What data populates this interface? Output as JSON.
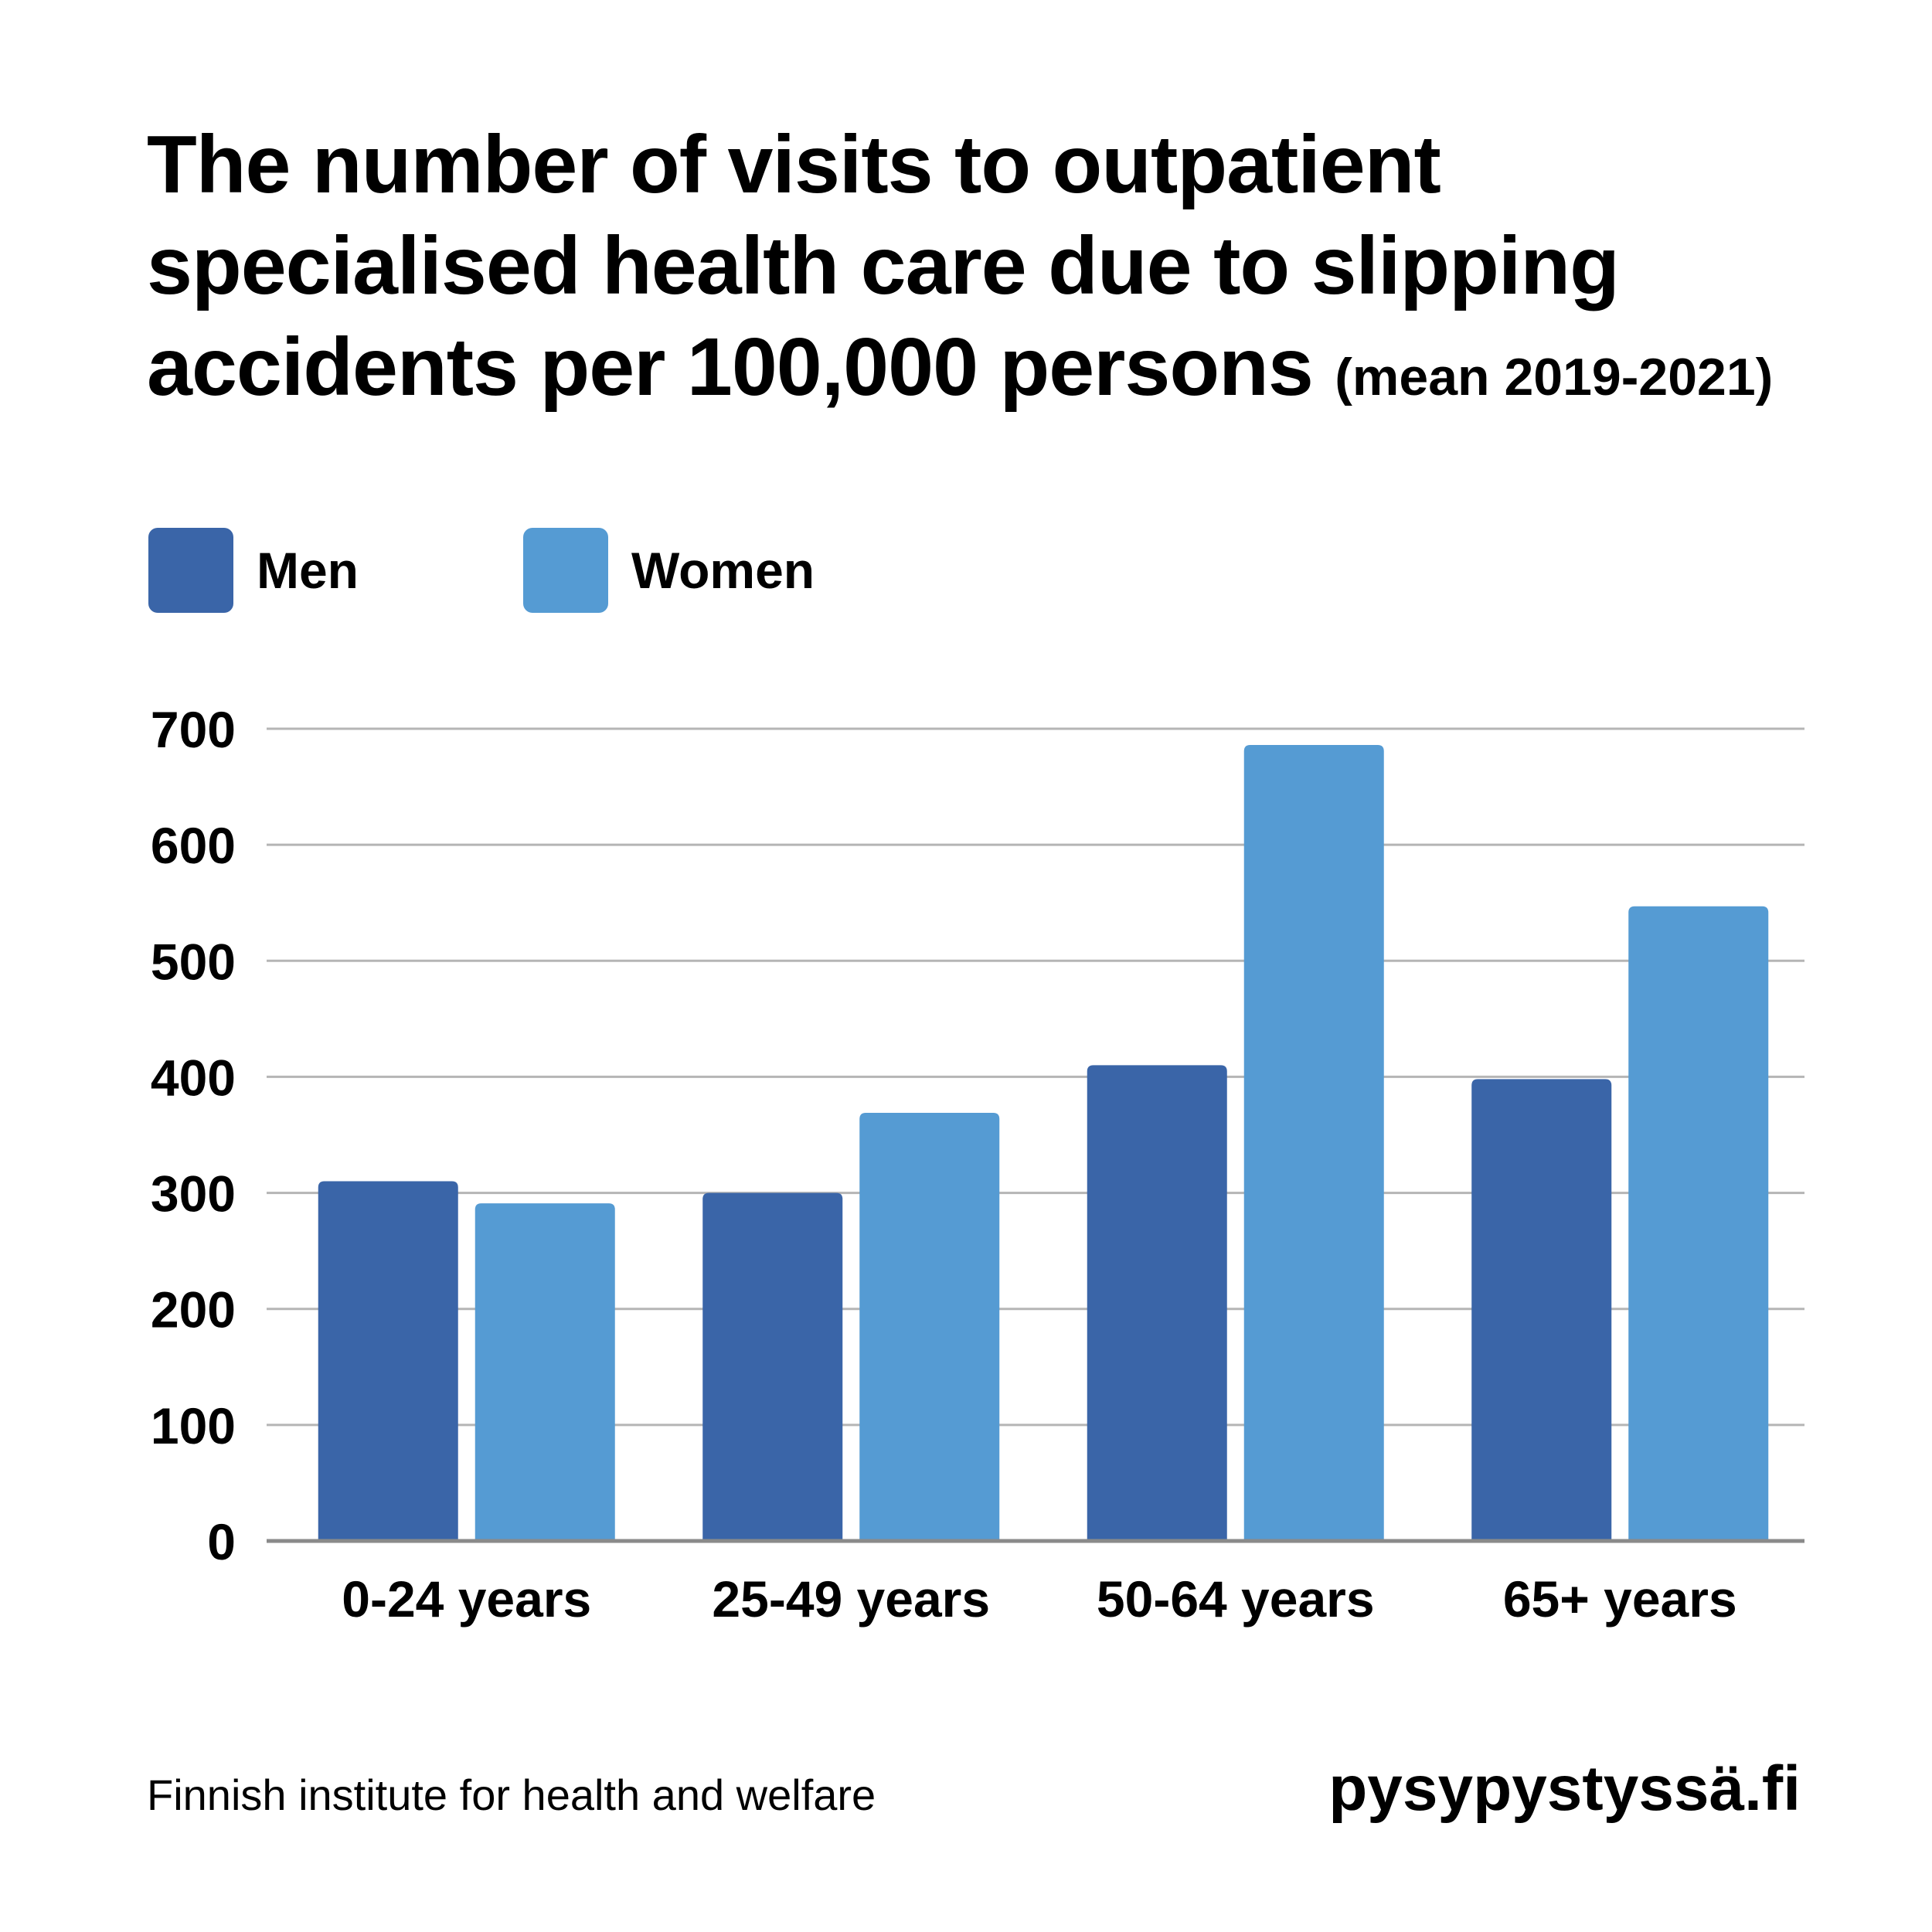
{
  "title": {
    "main": "The number of visits to outpatient specialised health care due to slipping accidents per 100,000 persons",
    "sub": "(mean 2019-2021)"
  },
  "legend": [
    {
      "label": "Men",
      "color": "#3a65a8"
    },
    {
      "label": "Women",
      "color": "#559bd3"
    }
  ],
  "chart_data": {
    "type": "bar",
    "categories": [
      "0-24 years",
      "25-49 years",
      "50-64 years",
      "65+ years"
    ],
    "series": [
      {
        "name": "Men",
        "values": [
          310,
          300,
          410,
          398
        ],
        "color": "#3a65a8"
      },
      {
        "name": "Women",
        "values": [
          291,
          369,
          686,
          547
        ],
        "color": "#559bd3"
      }
    ],
    "ylim": [
      0,
      700
    ],
    "yticks": [
      0,
      100,
      200,
      300,
      400,
      500,
      600,
      700
    ],
    "grid": true,
    "legend_position": "top-left"
  },
  "footer": {
    "source": "Finnish institute for health and welfare",
    "site": "pysypystyssä.fi"
  }
}
